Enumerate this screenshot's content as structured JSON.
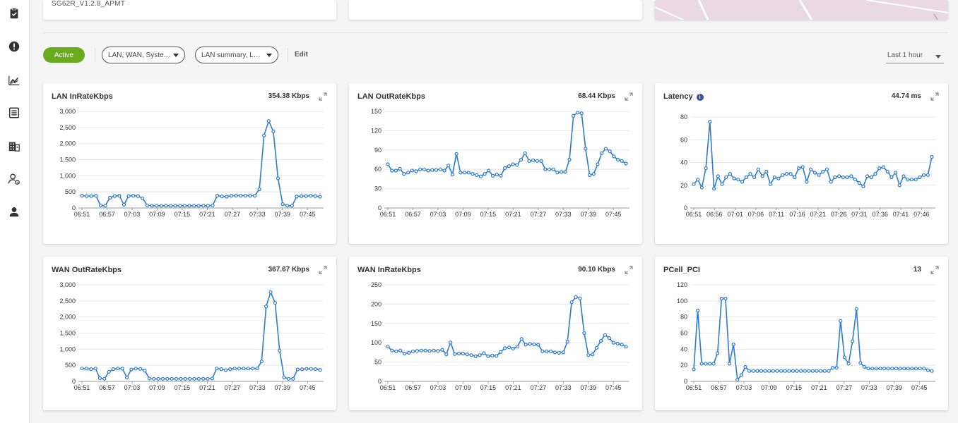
{
  "device": {
    "name": "SG62R_V1.2.8_APMT"
  },
  "sidebar": {
    "items": [
      {
        "name": "tasks",
        "icon": "clipboard-check-icon"
      },
      {
        "name": "alerts",
        "icon": "alert-circle-icon"
      },
      {
        "name": "analytics",
        "icon": "trend-chart-icon"
      },
      {
        "name": "reports",
        "icon": "list-document-icon"
      },
      {
        "name": "sites",
        "icon": "building-icon"
      },
      {
        "name": "user-settings",
        "icon": "user-gear-icon"
      },
      {
        "name": "account",
        "icon": "person-icon"
      }
    ]
  },
  "toolbar": {
    "status_label": "Active",
    "category_select": "LAN, WAN, Syste…",
    "view_select": "LAN summary, L…",
    "edit_label": "Edit",
    "time_range": "Last 1 hour"
  },
  "colors": {
    "accent_green": "#6aab1e",
    "line_blue": "#2e7bd1",
    "info_blue": "#3b4ea5"
  },
  "cards": [
    {
      "title": "LAN InRateKbps",
      "value": "354.38 Kbps",
      "info": false
    },
    {
      "title": "LAN OutRateKbps",
      "value": "68.44 Kbps",
      "info": false
    },
    {
      "title": "Latency",
      "value": "44.74 ms",
      "info": true
    },
    {
      "title": "WAN OutRateKbps",
      "value": "367.67 Kbps",
      "info": false
    },
    {
      "title": "WAN InRateKbps",
      "value": "90.10 Kbps",
      "info": false
    },
    {
      "title": "PCell_PCI",
      "value": "13",
      "info": false
    }
  ],
  "chart_data": [
    {
      "type": "line",
      "title": "LAN InRateKbps",
      "yticks": [
        "0",
        "500",
        "1,000",
        "1,500",
        "2,000",
        "2,500",
        "3,000"
      ],
      "ylim": [
        0,
        3000
      ],
      "xticks": [
        "06:51",
        "06:57",
        "07:03",
        "07:09",
        "07:15",
        "07:21",
        "07:27",
        "07:33",
        "07:39",
        "07:45"
      ],
      "series": [
        {
          "values": [
            380,
            370,
            370,
            380,
            80,
            70,
            320,
            370,
            380,
            100,
            370,
            380,
            370,
            300,
            80,
            70,
            70,
            70,
            70,
            70,
            70,
            70,
            70,
            70,
            70,
            70,
            70,
            70,
            80,
            380,
            360,
            350,
            380,
            380,
            380,
            380,
            380,
            380,
            580,
            2250,
            2700,
            2380,
            920,
            120,
            70,
            70,
            360,
            370,
            370,
            380,
            370,
            350
          ]
        }
      ]
    },
    {
      "type": "line",
      "title": "LAN OutRateKbps",
      "yticks": [
        "0",
        "30",
        "60",
        "90",
        "120",
        "150"
      ],
      "ylim": [
        0,
        150
      ],
      "xticks": [
        "06:51",
        "06:57",
        "07:03",
        "07:09",
        "07:15",
        "07:21",
        "07:27",
        "07:33",
        "07:39",
        "07:45"
      ],
      "series": [
        {
          "values": [
            68,
            58,
            58,
            61,
            53,
            55,
            58,
            57,
            60,
            60,
            58,
            59,
            59,
            60,
            58,
            66,
            52,
            84,
            55,
            55,
            55,
            53,
            51,
            49,
            53,
            58,
            50,
            52,
            50,
            62,
            65,
            68,
            67,
            75,
            85,
            73,
            74,
            73,
            73,
            60,
            60,
            60,
            55,
            56,
            56,
            75,
            143,
            148,
            147,
            92,
            51,
            53,
            68,
            85,
            92,
            88,
            80,
            75,
            73,
            69
          ]
        }
      ]
    },
    {
      "type": "line",
      "title": "Latency",
      "yticks": [
        "0",
        "20",
        "40",
        "60",
        "80"
      ],
      "ylim": [
        0,
        85
      ],
      "xticks": [
        "06:51",
        "06:56",
        "07:01",
        "07:06",
        "07:11",
        "07:16",
        "07:21",
        "07:26",
        "07:31",
        "07:36",
        "07:41",
        "07:46"
      ],
      "series": [
        {
          "values": [
            21,
            25,
            18,
            35,
            76,
            17,
            28,
            21,
            27,
            30,
            26,
            25,
            23,
            27,
            30,
            27,
            34,
            28,
            32,
            21,
            27,
            26,
            29,
            30,
            30,
            27,
            35,
            36,
            23,
            34,
            31,
            29,
            32,
            34,
            23,
            27,
            28,
            27,
            27,
            28,
            25,
            22,
            19,
            28,
            27,
            30,
            35,
            36,
            32,
            27,
            31,
            20,
            28,
            25,
            25,
            25,
            27,
            29,
            29,
            45
          ]
        }
      ]
    },
    {
      "type": "line",
      "title": "WAN OutRateKbps",
      "yticks": [
        "0",
        "500",
        "1,000",
        "1,500",
        "2,000",
        "2,500",
        "3,000"
      ],
      "ylim": [
        0,
        3000
      ],
      "xticks": [
        "06:51",
        "06:57",
        "07:03",
        "07:09",
        "07:15",
        "07:21",
        "07:27",
        "07:33",
        "07:39",
        "07:45"
      ],
      "series": [
        {
          "values": [
            400,
            400,
            380,
            400,
            100,
            80,
            300,
            380,
            400,
            400,
            120,
            370,
            400,
            390,
            330,
            90,
            80,
            80,
            80,
            80,
            80,
            80,
            80,
            80,
            80,
            80,
            80,
            80,
            80,
            90,
            400,
            380,
            350,
            380,
            400,
            400,
            400,
            400,
            400,
            400,
            620,
            2330,
            2770,
            2440,
            960,
            130,
            80,
            80,
            370,
            380,
            390,
            390,
            380,
            360
          ]
        }
      ]
    },
    {
      "type": "line",
      "title": "WAN InRateKbps",
      "yticks": [
        "0",
        "50",
        "100",
        "150",
        "200",
        "250"
      ],
      "ylim": [
        0,
        250
      ],
      "xticks": [
        "06:51",
        "06:57",
        "07:03",
        "07:09",
        "07:15",
        "07:21",
        "07:27",
        "07:33",
        "07:39",
        "07:45"
      ],
      "series": [
        {
          "values": [
            90,
            80,
            78,
            80,
            72,
            74,
            78,
            79,
            80,
            80,
            79,
            80,
            79,
            82,
            70,
            101,
            71,
            72,
            72,
            70,
            68,
            65,
            68,
            73,
            65,
            67,
            66,
            76,
            86,
            88,
            85,
            90,
            110,
            95,
            97,
            96,
            95,
            78,
            78,
            78,
            75,
            74,
            75,
            103,
            205,
            218,
            215,
            125,
            68,
            70,
            87,
            105,
            120,
            112,
            100,
            98,
            95,
            90
          ]
        }
      ]
    },
    {
      "type": "line",
      "title": "PCell_PCI",
      "yticks": [
        "0",
        "20",
        "40",
        "60",
        "80",
        "100",
        "120"
      ],
      "ylim": [
        0,
        120
      ],
      "xticks": [
        "06:51",
        "06:57",
        "07:03",
        "07:09",
        "07:15",
        "07:21",
        "07:27",
        "07:33",
        "07:39",
        "07:45"
      ],
      "series": [
        {
          "values": [
            15,
            88,
            22,
            22,
            22,
            22,
            35,
            103,
            103,
            22,
            46,
            2,
            8,
            18,
            13,
            13,
            13,
            13,
            13,
            13,
            13,
            13,
            13,
            13,
            13,
            13,
            13,
            13,
            13,
            13,
            13,
            13,
            13,
            13,
            13,
            17,
            17,
            75,
            30,
            22,
            50,
            90,
            23,
            18,
            16,
            16,
            16,
            16,
            16,
            16,
            16,
            16,
            16,
            16,
            16,
            16,
            16,
            16,
            16,
            14,
            13
          ]
        }
      ]
    }
  ]
}
